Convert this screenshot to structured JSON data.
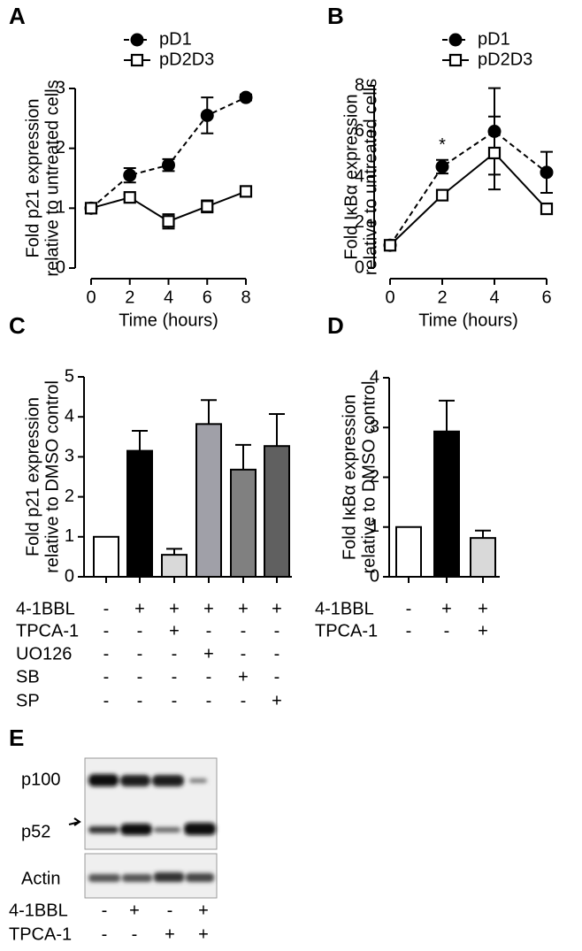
{
  "chart_data": [
    {
      "type": "line",
      "panel": "A",
      "x": [
        0,
        2,
        4,
        6,
        8
      ],
      "xlim": [
        0,
        8
      ],
      "xticks": [
        0,
        2,
        4,
        6,
        8
      ],
      "ylim": [
        0,
        3
      ],
      "yticks": [
        0,
        1,
        2,
        3
      ],
      "xlabel": "Time (hours)",
      "ylabel": [
        "Fold p21 expression",
        "relative to untreated cells"
      ],
      "series": [
        {
          "name": "pD1",
          "color": "#000000",
          "line_style": "dashed",
          "marker": "circle",
          "marker_fill": "#000000",
          "values": [
            1,
            1.55,
            1.72,
            2.55,
            2.85
          ],
          "errors": [
            0.05,
            0.12,
            0.1,
            0.3,
            0.05
          ]
        },
        {
          "name": "pD2D3",
          "color": "#000000",
          "line_style": "solid",
          "marker": "square",
          "marker_fill": "#ffffff",
          "values": [
            1,
            1.18,
            0.78,
            1.03,
            1.28
          ],
          "errors": [
            0.03,
            0.05,
            0.12,
            0.1,
            0.05
          ]
        }
      ]
    },
    {
      "type": "line",
      "panel": "B",
      "x": [
        0,
        2,
        4,
        6
      ],
      "xlim": [
        0,
        6
      ],
      "xticks": [
        0,
        2,
        4,
        6
      ],
      "ylim": [
        0,
        8
      ],
      "yticks": [
        0,
        2,
        4,
        6,
        8
      ],
      "xlabel": "Time (hours)",
      "ylabel": [
        "Fold IκBα expression",
        "relative to untreated cells"
      ],
      "annotations": [
        {
          "text": "*",
          "x": 2
        }
      ],
      "series": [
        {
          "name": "pD1",
          "color": "#000000",
          "line_style": "dashed",
          "marker": "circle",
          "marker_fill": "#000000",
          "values": [
            1,
            4.45,
            6.0,
            4.2
          ],
          "errors": [
            0.1,
            0.3,
            1.9,
            0.9
          ]
        },
        {
          "name": "pD2D3",
          "color": "#000000",
          "line_style": "solid",
          "marker": "square",
          "marker_fill": "#ffffff",
          "values": [
            1,
            3.2,
            5.05,
            2.6
          ],
          "errors": [
            0.1,
            0.2,
            1.6,
            0.1
          ]
        }
      ]
    },
    {
      "type": "bar",
      "panel": "C",
      "categories": [
        null,
        null,
        null,
        null,
        null,
        null
      ],
      "ylim": [
        0,
        5
      ],
      "yticks": [
        0,
        1,
        2,
        3,
        4,
        5
      ],
      "ylabel": [
        "Fold p21 expression",
        "relative to DMSO control"
      ],
      "values": [
        1,
        3.15,
        0.55,
        3.82,
        2.68,
        3.27
      ],
      "errors": [
        0,
        0.5,
        0.15,
        0.6,
        0.62,
        0.8
      ],
      "colors": [
        "#ffffff",
        "#000000",
        "#d9d9d9",
        "#a0a0a8",
        "#808080",
        "#606060"
      ],
      "conditions": [
        {
          "label": "4-1BBL",
          "signs": [
            "-",
            "+",
            "+",
            "+",
            "+",
            "+"
          ]
        },
        {
          "label": "TPCA-1",
          "signs": [
            "-",
            "-",
            "+",
            "-",
            "-",
            "-"
          ]
        },
        {
          "label": "UO126",
          "signs": [
            "-",
            "-",
            "-",
            "+",
            "-",
            "-"
          ]
        },
        {
          "label": "SB",
          "signs": [
            "-",
            "-",
            "-",
            "-",
            "+",
            "-"
          ]
        },
        {
          "label": "SP",
          "signs": [
            "-",
            "-",
            "-",
            "-",
            "-",
            "+"
          ]
        }
      ]
    },
    {
      "type": "bar",
      "panel": "D",
      "categories": [
        null,
        null,
        null
      ],
      "ylim": [
        0,
        4
      ],
      "yticks": [
        0,
        1,
        2,
        3,
        4
      ],
      "ylabel": [
        "Fold IκBα expression",
        "relative to DMSO control"
      ],
      "values": [
        1,
        2.92,
        0.78
      ],
      "errors": [
        0,
        0.62,
        0.15
      ],
      "colors": [
        "#ffffff",
        "#000000",
        "#d9d9d9"
      ],
      "conditions": [
        {
          "label": "4-1BBL",
          "signs": [
            "-",
            "+",
            "+"
          ]
        },
        {
          "label": "TPCA-1",
          "signs": [
            "-",
            "-",
            "+"
          ]
        }
      ]
    }
  ],
  "blot": {
    "panel": "E",
    "bands": [
      "p100",
      "p52",
      "Actin"
    ],
    "conditions": [
      {
        "label": "4-1BBL",
        "signs": [
          "-",
          "+",
          "-",
          "+"
        ]
      },
      {
        "label": "TPCA-1",
        "signs": [
          "-",
          "-",
          "+",
          "+"
        ]
      }
    ]
  }
}
